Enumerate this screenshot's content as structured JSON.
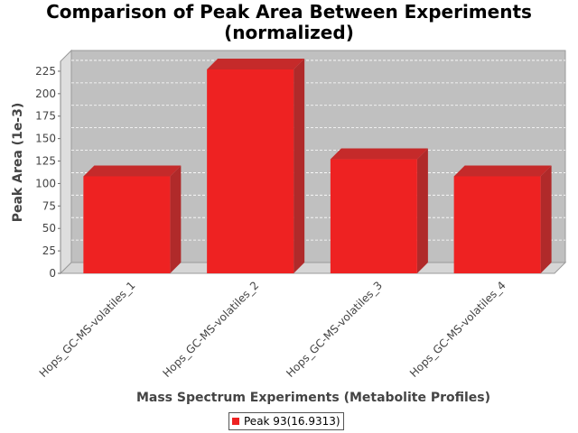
{
  "chart_data": {
    "type": "bar",
    "title": "Comparison of Peak Area Between Experiments\n(normalized)",
    "xlabel": "Mass Spectrum Experiments (Metabolite Profiles)",
    "ylabel": "Peak Area (1e-3)",
    "categories": [
      "Hops_GC-MS-volatiles_1",
      "Hops_GC-MS-volatiles_2",
      "Hops_GC-MS-volatiles_3",
      "Hops_GC-MS-volatiles_4"
    ],
    "series": [
      {
        "name": "Peak 93(16.9313)",
        "values": [
          108,
          227,
          127,
          108
        ],
        "color": "#ee2222"
      }
    ],
    "ylim": [
      0,
      236
    ],
    "yticks": [
      0,
      25,
      50,
      75,
      100,
      125,
      150,
      175,
      200,
      225
    ],
    "grid": true,
    "style": "3d",
    "legend_position": "bottom",
    "plot_background": "#c0c0c0"
  }
}
